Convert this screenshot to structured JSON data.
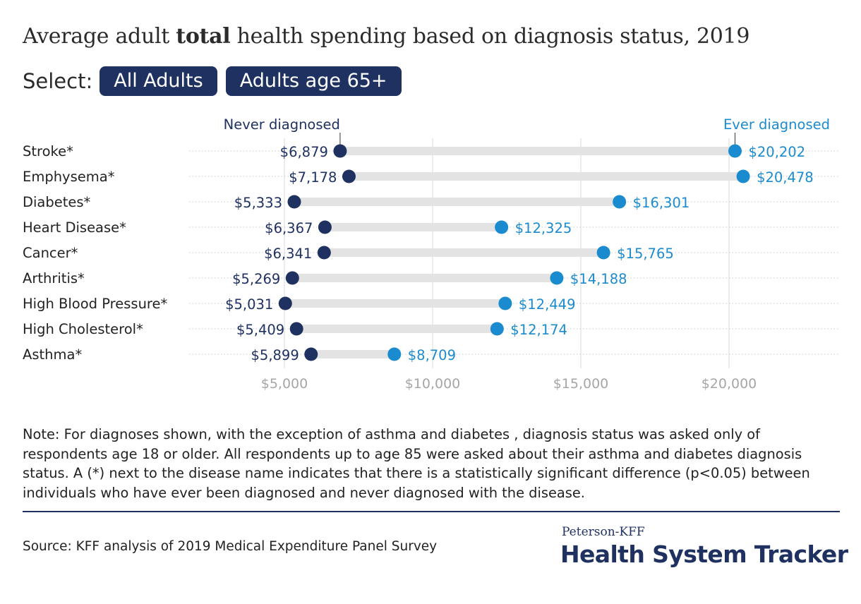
{
  "title": {
    "prefix": "Average adult ",
    "bold": "total",
    "suffix": " health spending based on diagnosis status, 2019"
  },
  "select": {
    "label": "Select:",
    "options": [
      "All Adults",
      "Adults age 65+"
    ]
  },
  "chart_data": {
    "type": "dumbbell",
    "legend": {
      "never": "Never diagnosed",
      "ever": "Ever diagnosed"
    },
    "categories": [
      "Stroke*",
      "Emphysema*",
      "Diabetes*",
      "Heart Disease*",
      "Cancer*",
      "Arthritis*",
      "High Blood Pressure*",
      "High Cholesterol*",
      "Asthma*"
    ],
    "series": [
      {
        "name": "Never diagnosed",
        "color": "#1f3160",
        "values": [
          6879,
          7178,
          5333,
          6367,
          6341,
          5269,
          5031,
          5409,
          5899
        ],
        "labels": [
          "$6,879",
          "$7,178",
          "$5,333",
          "$6,367",
          "$6,341",
          "$5,269",
          "$5,031",
          "$5,409",
          "$5,899"
        ]
      },
      {
        "name": "Ever diagnosed",
        "color": "#1b8bd0",
        "values": [
          20202,
          20478,
          16301,
          12325,
          15765,
          14188,
          12449,
          12174,
          8709
        ],
        "labels": [
          "$20,202",
          "$20,478",
          "$16,301",
          "$12,325",
          "$15,765",
          "$14,188",
          "$12,449",
          "$12,174",
          "$8,709"
        ]
      }
    ],
    "xticks": [
      5000,
      10000,
      15000,
      20000
    ],
    "xtick_labels": [
      "$5,000",
      "$10,000",
      "$15,000",
      "$20,000"
    ],
    "xlim": [
      3800,
      23000
    ],
    "grid": true
  },
  "note": "Note:  For diagnoses shown, with the exception of asthma and diabetes , diagnosis status was asked only of respondents age 18 or older. All respondents up to age 85 were asked about their asthma and diabetes diagnosis status. A (*) next to the disease name indicates that there is a statistically significant difference (p<0.05) between individuals who have ever been diagnosed and never diagnosed with the disease.",
  "source": "Source: KFF analysis of 2019 Medical Expenditure Panel Survey",
  "brand": {
    "small": "Peterson-KFF",
    "big": "Health System Tracker"
  }
}
